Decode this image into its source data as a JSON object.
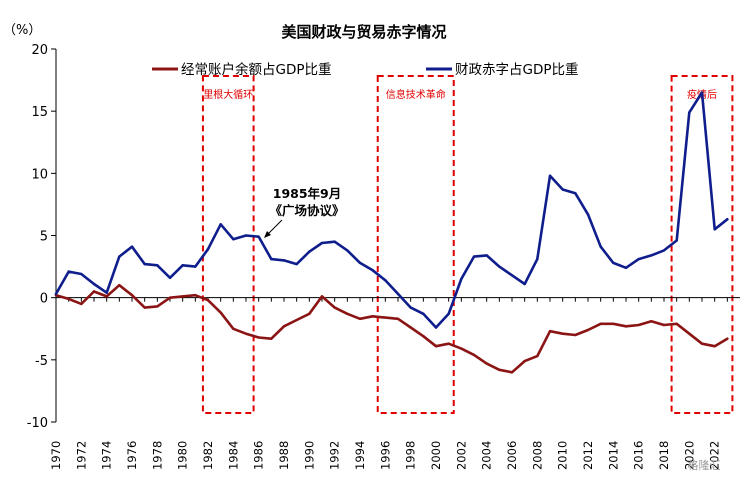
{
  "chart_data": {
    "type": "line",
    "title": "美国财政与贸易赤字情况",
    "ylabel": "（%）",
    "ylim": [
      -10,
      20
    ],
    "yticks": [
      "20",
      "15",
      "10",
      "5",
      "0",
      "-5",
      "-10"
    ],
    "xlim": [
      1970,
      2024
    ],
    "xticks": [
      "1970",
      "1972",
      "1974",
      "1976",
      "1978",
      "1980",
      "1982",
      "1984",
      "1986",
      "1988",
      "1990",
      "1992",
      "1994",
      "1996",
      "1998",
      "2000",
      "2002",
      "2004",
      "2006",
      "2008",
      "2010",
      "2012",
      "2014",
      "2016",
      "2018",
      "2020",
      "2022"
    ],
    "grid": false,
    "legend_position": "top",
    "series": [
      {
        "name": "经常账户余额占GDP比重",
        "color": "#8b1414",
        "x": [
          1970,
          1971,
          1972,
          1973,
          1974,
          1975,
          1976,
          1977,
          1978,
          1979,
          1980,
          1981,
          1982,
          1983,
          1984,
          1985,
          1986,
          1987,
          1988,
          1989,
          1990,
          1991,
          1992,
          1993,
          1994,
          1995,
          1996,
          1997,
          1998,
          1999,
          2000,
          2001,
          2002,
          2003,
          2004,
          2005,
          2006,
          2007,
          2008,
          2009,
          2010,
          2011,
          2012,
          2013,
          2014,
          2015,
          2016,
          2017,
          2018,
          2019,
          2020,
          2021,
          2022,
          2023
        ],
        "values": [
          0.2,
          -0.1,
          -0.5,
          0.5,
          0.1,
          1.0,
          0.2,
          -0.8,
          -0.7,
          0.0,
          0.1,
          0.2,
          -0.2,
          -1.2,
          -2.5,
          -2.9,
          -3.2,
          -3.3,
          -2.3,
          -1.8,
          -1.3,
          0.1,
          -0.8,
          -1.3,
          -1.7,
          -1.5,
          -1.6,
          -1.7,
          -2.4,
          -3.1,
          -3.9,
          -3.7,
          -4.1,
          -4.6,
          -5.3,
          -5.8,
          -6.0,
          -5.1,
          -4.7,
          -2.7,
          -2.9,
          -3.0,
          -2.6,
          -2.1,
          -2.1,
          -2.3,
          -2.2,
          -1.9,
          -2.2,
          -2.1,
          -2.9,
          -3.7,
          -3.9,
          -3.3
        ]
      },
      {
        "name": "财政赤字占GDP比重",
        "color": "#0f1e8c",
        "x": [
          1970,
          1971,
          1972,
          1973,
          1974,
          1975,
          1976,
          1977,
          1978,
          1979,
          1980,
          1981,
          1982,
          1983,
          1984,
          1985,
          1986,
          1987,
          1988,
          1989,
          1990,
          1991,
          1992,
          1993,
          1994,
          1995,
          1996,
          1997,
          1998,
          1999,
          2000,
          2001,
          2002,
          2003,
          2004,
          2005,
          2006,
          2007,
          2008,
          2009,
          2010,
          2011,
          2012,
          2013,
          2014,
          2015,
          2016,
          2017,
          2018,
          2019,
          2020,
          2021,
          2022,
          2023
        ],
        "values": [
          0.3,
          2.1,
          1.9,
          1.1,
          0.4,
          3.3,
          4.1,
          2.7,
          2.6,
          1.6,
          2.6,
          2.5,
          3.9,
          5.9,
          4.7,
          5.0,
          4.9,
          3.1,
          3.0,
          2.7,
          3.7,
          4.4,
          4.5,
          3.8,
          2.8,
          2.2,
          1.4,
          0.3,
          -0.8,
          -1.3,
          -2.4,
          -1.3,
          1.5,
          3.3,
          3.4,
          2.5,
          1.8,
          1.1,
          3.1,
          9.8,
          8.7,
          8.4,
          6.7,
          4.1,
          2.8,
          2.4,
          3.1,
          3.4,
          3.8,
          4.6,
          14.9,
          16.5,
          5.5,
          6.3
        ]
      }
    ],
    "annotations": {
      "plaza_line1": "1985年9月",
      "plaza_line2": "《广场协议》",
      "zones": [
        {
          "label": "里根大循环",
          "from": 1981.6,
          "to": 1985.6
        },
        {
          "label": "信息技术革命",
          "from": 1995.4,
          "to": 2001.4
        },
        {
          "label": "疫情后",
          "from": 2018.6,
          "to": 2023.4
        }
      ]
    },
    "watermark": "格隆汇"
  }
}
